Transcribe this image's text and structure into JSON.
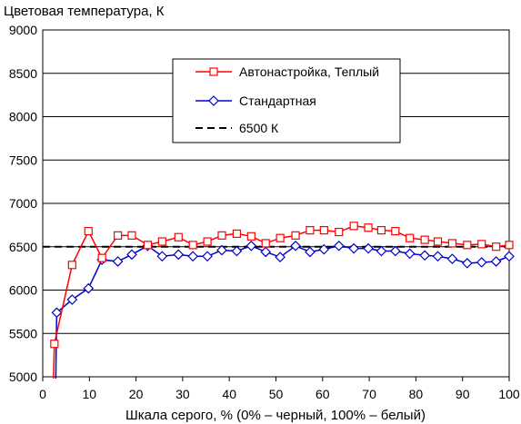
{
  "chart_data": {
    "type": "line",
    "ylabel": "Цветовая температура, К",
    "xlabel": "Шкала серого, % (0% – черный, 100% – белый)",
    "xlim": [
      0,
      100
    ],
    "ylim": [
      5000,
      9000
    ],
    "xticks": [
      0,
      10,
      20,
      30,
      40,
      50,
      60,
      70,
      80,
      90,
      100
    ],
    "yticks": [
      5000,
      5500,
      6000,
      6500,
      7000,
      7500,
      8000,
      8500,
      9000
    ],
    "grid": "horizontal",
    "legend_position": "top-center",
    "series": [
      {
        "name": "Автонастройка, Теплый",
        "color": "#ff0000",
        "marker": "square",
        "x": [
          2.5,
          6.3,
          9.8,
          12.7,
          16.1,
          19.1,
          22.5,
          25.6,
          29.1,
          32.2,
          35.3,
          38.4,
          41.6,
          44.7,
          47.8,
          50.9,
          54.2,
          57.3,
          60.3,
          63.5,
          66.7,
          69.8,
          72.6,
          75.6,
          78.7,
          81.9,
          84.7,
          87.8,
          91.0,
          94.1,
          97.2,
          100.0
        ],
        "y": [
          5380,
          6290,
          6680,
          6370,
          6630,
          6630,
          6520,
          6560,
          6610,
          6520,
          6560,
          6630,
          6650,
          6620,
          6540,
          6600,
          6630,
          6690,
          6690,
          6670,
          6740,
          6720,
          6690,
          6680,
          6600,
          6580,
          6560,
          6540,
          6520,
          6530,
          6500,
          6520
        ]
      },
      {
        "name": "Стандартная",
        "color": "#0000cc",
        "marker": "diamond",
        "x": [
          3.0,
          6.3,
          9.8,
          12.7,
          16.1,
          19.1,
          22.5,
          25.6,
          29.1,
          32.2,
          35.3,
          38.4,
          41.6,
          44.7,
          47.8,
          50.9,
          54.2,
          57.3,
          60.3,
          63.5,
          66.7,
          69.8,
          72.6,
          75.6,
          78.7,
          81.9,
          84.7,
          87.8,
          91.0,
          94.1,
          97.2,
          100.0
        ],
        "y": [
          5740,
          5890,
          6020,
          6350,
          6330,
          6410,
          6510,
          6390,
          6410,
          6390,
          6390,
          6460,
          6450,
          6510,
          6440,
          6380,
          6510,
          6440,
          6470,
          6510,
          6480,
          6480,
          6450,
          6450,
          6420,
          6400,
          6390,
          6360,
          6310,
          6320,
          6330,
          6390
        ]
      },
      {
        "name": "6500 К",
        "color": "#000000",
        "marker": "none",
        "dash": true,
        "x": [
          0,
          100
        ],
        "y": [
          6500,
          6500
        ]
      }
    ],
    "red_low_tail_x": [
      2.3,
      2.5
    ],
    "red_low_tail_y": [
      4980,
      5380
    ],
    "blue_low_tail_x": [
      2.8,
      3.0
    ],
    "blue_low_tail_y": [
      4980,
      5740
    ]
  }
}
